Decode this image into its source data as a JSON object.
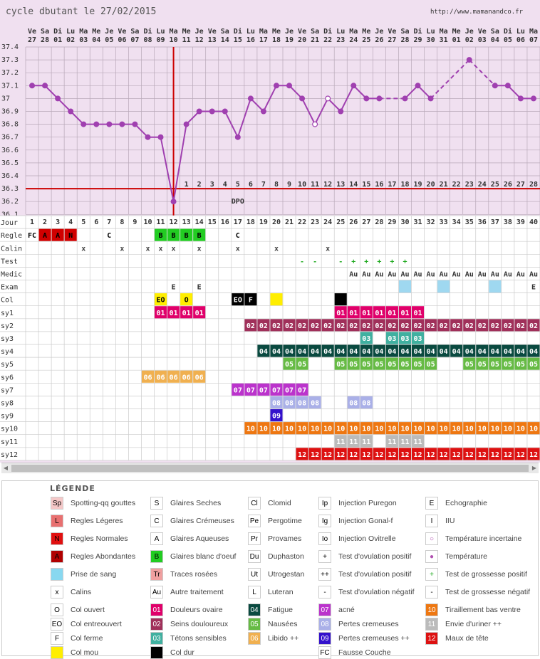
{
  "header": {
    "title": "cycle dbutant le 27/02/2015",
    "url": "http://www.mamanandco.fr"
  },
  "chart_data": {
    "type": "line",
    "title": "cycle dbutant le 27/02/2015",
    "ylim": [
      36.1,
      37.4
    ],
    "yticks": [
      "37.4",
      "37.3",
      "37.2",
      "37.1",
      "37",
      "36.9",
      "36.8",
      "36.7",
      "36.6",
      "36.5",
      "36.4",
      "36.3",
      "36.2",
      "36.1"
    ],
    "weekday_labels": [
      "Ve",
      "Sa",
      "Di",
      "Lu",
      "Ma",
      "Me",
      "Je",
      "Ve",
      "Sa",
      "Di",
      "Lu",
      "Ma",
      "Me",
      "Je",
      "Ve",
      "Sa",
      "Di",
      "Lu",
      "Ma",
      "Me",
      "Je",
      "Ve",
      "Sa",
      "Di",
      "Lu",
      "Ma",
      "Me",
      "Je",
      "Ve",
      "Sa",
      "Di",
      "Lu",
      "Ma",
      "Me",
      "Je",
      "Ve",
      "Sa",
      "Di",
      "Lu",
      "Ma"
    ],
    "date_labels": [
      "27",
      "28",
      "01",
      "02",
      "03",
      "04",
      "05",
      "06",
      "07",
      "08",
      "09",
      "10",
      "11",
      "12",
      "13",
      "14",
      "15",
      "16",
      "17",
      "18",
      "19",
      "20",
      "21",
      "22",
      "23",
      "24",
      "25",
      "26",
      "27",
      "28",
      "29",
      "30",
      "31",
      "01",
      "02",
      "03",
      "04",
      "05",
      "06",
      "07"
    ],
    "cycle_days": [
      "1",
      "2",
      "3",
      "4",
      "5",
      "6",
      "7",
      "8",
      "9",
      "10",
      "11",
      "12",
      "13",
      "14",
      "15",
      "16",
      "17",
      "18",
      "19",
      "20",
      "21",
      "22",
      "23",
      "24",
      "25",
      "26",
      "27",
      "28",
      "29",
      "30",
      "31",
      "32",
      "33",
      "34",
      "35",
      "36",
      "37",
      "38",
      "39",
      "40"
    ],
    "temperatures": [
      37.1,
      37.1,
      37.0,
      36.9,
      36.8,
      36.8,
      36.8,
      36.8,
      36.8,
      36.7,
      36.7,
      36.2,
      36.8,
      36.9,
      36.9,
      36.9,
      36.7,
      37.0,
      36.9,
      37.1,
      37.1,
      37.0,
      36.8,
      37.0,
      36.9,
      37.1,
      37.0,
      37.0,
      null,
      37.0,
      37.1,
      37.0,
      null,
      null,
      37.3,
      null,
      37.1,
      37.1,
      37.0,
      37.0
    ],
    "uncertain_days": [
      23,
      24
    ],
    "coverline": 36.3,
    "ovulation_day": 12,
    "post_ov_numbers": [
      "1",
      "2",
      "3",
      "4",
      "5",
      "6",
      "7",
      "8",
      "9",
      "10",
      "11",
      "12",
      "13",
      "14",
      "15",
      "16",
      "17",
      "18",
      "19",
      "20",
      "21",
      "22",
      "23",
      "24",
      "25",
      "26",
      "27",
      "28"
    ],
    "dpo_label": "DPO",
    "dpo_day": 17
  },
  "rows": [
    {
      "label": "Jour"
    },
    {
      "label": "Regle",
      "cells": {
        "1": [
          "FC",
          "#fff",
          "#000"
        ],
        "2": [
          "A",
          "#d00000",
          "#000"
        ],
        "3": [
          "A",
          "#d00000",
          "#000"
        ],
        "4": [
          "N",
          "#d00000",
          "#000"
        ],
        "7": [
          "C",
          "#fff",
          "#000"
        ],
        "11": [
          "B",
          "#22cc22",
          "#000"
        ],
        "12": [
          "B",
          "#22cc22",
          "#000"
        ],
        "13": [
          "B",
          "#22cc22",
          "#000"
        ],
        "14": [
          "B",
          "#22cc22",
          "#000"
        ],
        "17": [
          "C",
          "#fff",
          "#000"
        ]
      }
    },
    {
      "label": "Calin",
      "cells": {
        "5": [
          "x",
          "#fff",
          "#444"
        ],
        "8": [
          "x",
          "#fff",
          "#444"
        ],
        "10": [
          "x",
          "#fff",
          "#444"
        ],
        "11": [
          "x",
          "#fff",
          "#444"
        ],
        "12": [
          "x",
          "#fff",
          "#444"
        ],
        "14": [
          "x",
          "#fff",
          "#444"
        ],
        "17": [
          "x",
          "#fff",
          "#444"
        ],
        "20": [
          "x",
          "#fff",
          "#444"
        ],
        "24": [
          "x",
          "#fff",
          "#444"
        ]
      }
    },
    {
      "label": "Test",
      "cells": {
        "22": [
          "-",
          "#fff",
          "#22aa22"
        ],
        "23": [
          "-",
          "#fff",
          "#22aa22"
        ],
        "25": [
          "-",
          "#fff",
          "#22aa22"
        ],
        "26": [
          "+",
          "#fff",
          "#22aa22"
        ],
        "27": [
          "+",
          "#fff",
          "#22aa22"
        ],
        "28": [
          "+",
          "#fff",
          "#22aa22"
        ],
        "29": [
          "+",
          "#fff",
          "#22aa22"
        ],
        "30": [
          "+",
          "#fff",
          "#22aa22"
        ]
      }
    },
    {
      "label": "Medic",
      "cells": {
        "26": [
          "Au",
          "#fff",
          "#333"
        ],
        "27": [
          "Au",
          "#fff",
          "#333"
        ],
        "28": [
          "Au",
          "#fff",
          "#333"
        ],
        "29": [
          "Au",
          "#fff",
          "#333"
        ],
        "30": [
          "Au",
          "#fff",
          "#333"
        ],
        "31": [
          "Au",
          "#fff",
          "#333"
        ],
        "32": [
          "Au",
          "#fff",
          "#333"
        ],
        "33": [
          "Au",
          "#fff",
          "#333"
        ],
        "34": [
          "Au",
          "#fff",
          "#333"
        ],
        "35": [
          "Au",
          "#fff",
          "#333"
        ],
        "36": [
          "Au",
          "#fff",
          "#333"
        ],
        "37": [
          "Au",
          "#fff",
          "#333"
        ],
        "38": [
          "Au",
          "#fff",
          "#333"
        ],
        "39": [
          "Au",
          "#fff",
          "#333"
        ],
        "40": [
          "Au",
          "#fff",
          "#333"
        ]
      }
    },
    {
      "label": "Exam",
      "cells": {
        "12": [
          "E",
          "#fff",
          "#333"
        ],
        "14": [
          "E",
          "#fff",
          "#333"
        ],
        "30": [
          "",
          "#9fd8f0",
          "#333"
        ],
        "33": [
          "",
          "#9fd8f0",
          "#333"
        ],
        "37": [
          "",
          "#9fd8f0",
          "#333"
        ],
        "40": [
          "E",
          "#fff",
          "#333"
        ]
      }
    },
    {
      "label": "Col",
      "cells": {
        "11": [
          "EO",
          "#ffee00",
          "#000"
        ],
        "13": [
          "O",
          "#ffee00",
          "#000"
        ],
        "17": [
          "EO",
          "#000",
          "#fff"
        ],
        "18": [
          "F",
          "#000",
          "#fff"
        ],
        "20": [
          "",
          "#ffee00",
          "#000"
        ],
        "25": [
          "",
          "#000",
          "#fff"
        ]
      }
    },
    {
      "label": "sy1",
      "span": [
        [
          11,
          14,
          "01"
        ],
        [
          25,
          31,
          "01"
        ]
      ],
      "color": "#e0006a"
    },
    {
      "label": "sy2",
      "span": [
        [
          18,
          40,
          "02"
        ]
      ],
      "color": "#a0305a"
    },
    {
      "label": "sy3",
      "span": [
        [
          27,
          27,
          "03"
        ],
        [
          29,
          31,
          "03"
        ]
      ],
      "color": "#40b0a0"
    },
    {
      "label": "sy4",
      "span": [
        [
          19,
          40,
          "04"
        ]
      ],
      "color": "#0a4a40"
    },
    {
      "label": "sy5",
      "span": [
        [
          21,
          22,
          "05"
        ],
        [
          25,
          32,
          "05"
        ],
        [
          35,
          40,
          "05"
        ]
      ],
      "color": "#66bb44"
    },
    {
      "label": "sy6",
      "span": [
        [
          10,
          14,
          "06"
        ]
      ],
      "color": "#f0b050"
    },
    {
      "label": "sy7",
      "span": [
        [
          17,
          22,
          "07"
        ]
      ],
      "color": "#bb33cc"
    },
    {
      "label": "sy8",
      "span": [
        [
          20,
          23,
          "08"
        ],
        [
          26,
          27,
          "08"
        ]
      ],
      "color": "#aab0e8"
    },
    {
      "label": "sy9",
      "span": [
        [
          20,
          20,
          "09"
        ]
      ],
      "color": "#3311cc"
    },
    {
      "label": "sy10",
      "span": [
        [
          18,
          40,
          "10"
        ]
      ],
      "color": "#ee7711"
    },
    {
      "label": "sy11",
      "span": [
        [
          25,
          27,
          "11"
        ],
        [
          29,
          31,
          "11"
        ]
      ],
      "color": "#bbbbbb"
    },
    {
      "label": "sy12",
      "span": [
        [
          22,
          40,
          "12"
        ]
      ],
      "color": "#dd1111"
    }
  ],
  "legend": {
    "title": "LÉGENDE",
    "items": [
      {
        "code": "Sp",
        "bg": "#f5c8c8",
        "fg": "#000",
        "text": "Spotting-qq gouttes"
      },
      {
        "code": "S",
        "bg": "#fff",
        "fg": "#000",
        "text": "Glaires Seches"
      },
      {
        "code": "Cl",
        "bg": "#fff",
        "fg": "#000",
        "text": "Clomid"
      },
      {
        "code": "Ip",
        "bg": "#fff",
        "fg": "#000",
        "text": "Injection Puregon"
      },
      {
        "code": "E",
        "bg": "#fff",
        "fg": "#000",
        "text": "Echographie"
      },
      {
        "code": "L",
        "bg": "#e87070",
        "fg": "#000",
        "text": "Regles Légeres"
      },
      {
        "code": "C",
        "bg": "#fff",
        "fg": "#000",
        "text": "Glaires Crémeuses"
      },
      {
        "code": "Pe",
        "bg": "#fff",
        "fg": "#000",
        "text": "Pergotime"
      },
      {
        "code": "Ig",
        "bg": "#fff",
        "fg": "#000",
        "text": "Injection Gonal-f"
      },
      {
        "code": "I",
        "bg": "#fff",
        "fg": "#000",
        "text": "IIU"
      },
      {
        "code": "N",
        "bg": "#e01010",
        "fg": "#000",
        "text": "Regles Normales"
      },
      {
        "code": "A",
        "bg": "#fff",
        "fg": "#000",
        "text": "Glaires Aqueuses"
      },
      {
        "code": "Pr",
        "bg": "#fff",
        "fg": "#000",
        "text": "Provames"
      },
      {
        "code": "Io",
        "bg": "#fff",
        "fg": "#000",
        "text": "Injection Ovitrelle"
      },
      {
        "code": "○",
        "bg": "#fff",
        "fg": "#b050b0",
        "text": "Température incertaine"
      },
      {
        "code": "A",
        "bg": "#b00000",
        "fg": "#000",
        "text": "Regles Abondantes"
      },
      {
        "code": "B",
        "bg": "#22cc22",
        "fg": "#000",
        "text": "Glaires blanc d'oeuf"
      },
      {
        "code": "Du",
        "bg": "#fff",
        "fg": "#000",
        "text": "Duphaston"
      },
      {
        "code": "+",
        "bg": "#fff",
        "fg": "#000",
        "text": "Test d'ovulation positif"
      },
      {
        "code": "●",
        "bg": "#fff",
        "fg": "#b050b0",
        "text": "Température"
      },
      {
        "code": "",
        "bg": "#88d8f0",
        "fg": "#000",
        "text": "Prise de sang"
      },
      {
        "code": "Tr",
        "bg": "#f0a0a0",
        "fg": "#000",
        "text": "Traces rosées"
      },
      {
        "code": "Ut",
        "bg": "#fff",
        "fg": "#000",
        "text": "Utrogestan"
      },
      {
        "code": "++",
        "bg": "#fff",
        "fg": "#000",
        "text": "Test d'ovulation positif"
      },
      {
        "code": "+",
        "bg": "#fff",
        "fg": "#22aa22",
        "text": "Test de grossesse positif"
      },
      {
        "code": "x",
        "bg": "#fff",
        "fg": "#000",
        "text": "Calins"
      },
      {
        "code": "Au",
        "bg": "#fff",
        "fg": "#000",
        "text": "Autre traitement"
      },
      {
        "code": "L",
        "bg": "#fff",
        "fg": "#000",
        "text": "Luteran"
      },
      {
        "code": "-",
        "bg": "#fff",
        "fg": "#000",
        "text": "Test d'ovulation négatif"
      },
      {
        "code": "-",
        "bg": "#fff",
        "fg": "#000",
        "text": "Test de grossesse négatif"
      },
      {
        "code": "O",
        "bg": "#fff",
        "fg": "#000",
        "text": "Col ouvert"
      },
      {
        "code": "01",
        "bg": "#e0006a",
        "fg": "#fff",
        "text": "Douleurs ovaire"
      },
      {
        "code": "04",
        "bg": "#0a4a40",
        "fg": "#fff",
        "text": "Fatigue"
      },
      {
        "code": "07",
        "bg": "#bb33cc",
        "fg": "#fff",
        "text": "acné"
      },
      {
        "code": "10",
        "bg": "#ee7711",
        "fg": "#fff",
        "text": "Tiraillement bas ventre"
      },
      {
        "code": "EO",
        "bg": "#fff",
        "fg": "#000",
        "text": "Col entreouvert"
      },
      {
        "code": "02",
        "bg": "#a0305a",
        "fg": "#fff",
        "text": "Seins douloureux"
      },
      {
        "code": "05",
        "bg": "#66bb44",
        "fg": "#fff",
        "text": "Nausées"
      },
      {
        "code": "08",
        "bg": "#aab0e8",
        "fg": "#fff",
        "text": "Pertes cremeuses"
      },
      {
        "code": "11",
        "bg": "#bbbbbb",
        "fg": "#fff",
        "text": "Envie d'uriner ++"
      },
      {
        "code": "F",
        "bg": "#fff",
        "fg": "#000",
        "text": "Col ferme"
      },
      {
        "code": "03",
        "bg": "#40b0a0",
        "fg": "#fff",
        "text": "Tétons sensibles"
      },
      {
        "code": "06",
        "bg": "#f0b050",
        "fg": "#fff",
        "text": "Libido ++"
      },
      {
        "code": "09",
        "bg": "#3311cc",
        "fg": "#fff",
        "text": "Pertes cremeuses ++"
      },
      {
        "code": "12",
        "bg": "#dd1111",
        "fg": "#fff",
        "text": "Maux de tête"
      },
      {
        "code": "",
        "bg": "#ffee00",
        "fg": "#000",
        "text": "Col mou"
      },
      {
        "code": "",
        "bg": "#000",
        "fg": "#fff",
        "text": "Col dur"
      },
      {
        "code": "",
        "bg": "#fff",
        "fg": "#000",
        "text": ""
      },
      {
        "code": "FC",
        "bg": "#fff",
        "fg": "#000",
        "text": "Fausse Couche"
      },
      {
        "code": "",
        "bg": "#fff",
        "fg": "#000",
        "text": ""
      }
    ]
  }
}
